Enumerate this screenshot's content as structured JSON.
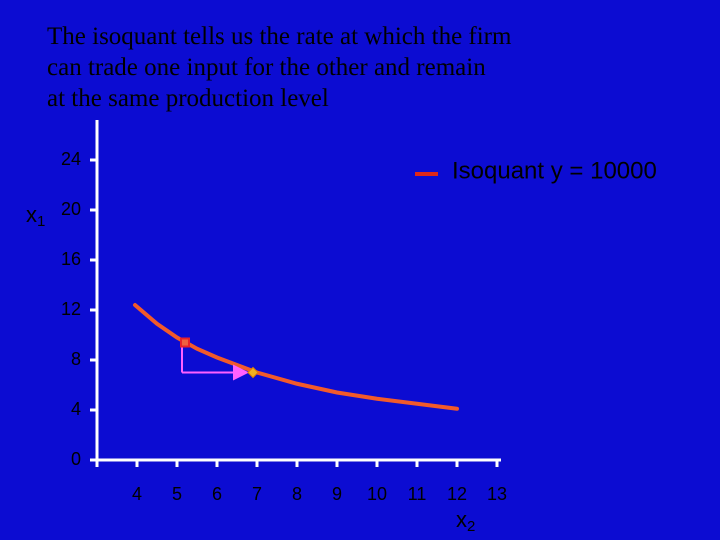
{
  "chart_data": {
    "type": "line",
    "title": [
      "The isoquant tells us the rate at which the firm",
      "can trade one input for the other and remain",
      "at the same production level"
    ],
    "x_label": {
      "text": "x",
      "subscript": "2"
    },
    "y_label": {
      "text": "x",
      "subscript": "1"
    },
    "series": [
      {
        "name": "Isoquant y = 10000",
        "color": "#f25a2a",
        "x": [
          3.95,
          4.5,
          5,
          5.5,
          6,
          7,
          8,
          9,
          10,
          11,
          12
        ],
        "values": [
          12.4,
          10.9,
          9.8,
          8.9,
          8.2,
          7,
          6.1,
          5.4,
          4.9,
          4.5,
          4.1
        ]
      }
    ],
    "points": [
      {
        "x": 5.2,
        "y": 9.4,
        "color": "#e8202a",
        "shape": "square"
      },
      {
        "x": 6.9,
        "y": 7,
        "color": "#f0b020",
        "shape": "diamond"
      }
    ],
    "arrow_color": "#ff60ff",
    "legend_color": "#e02818",
    "xlim": [
      3,
      13.1
    ],
    "ylim": [
      0,
      27.2
    ],
    "xticks": [
      4,
      5,
      6,
      7,
      8,
      9,
      10,
      11,
      12,
      13
    ],
    "yticks": [
      0,
      4,
      8,
      12,
      16,
      20,
      24
    ],
    "legend": "top-right"
  }
}
